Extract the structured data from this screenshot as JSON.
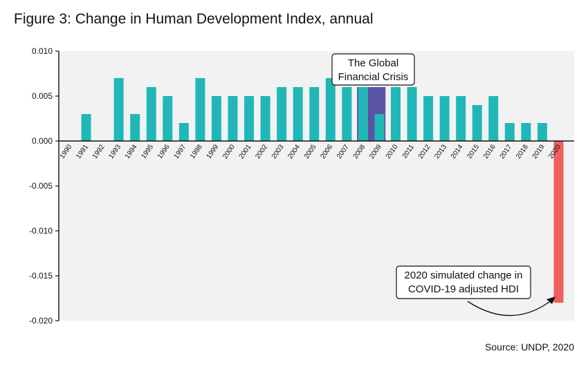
{
  "title": "Figure 3: Change in Human Development Index, annual",
  "source": "Source: UNDP, 2020",
  "colors": {
    "bar": "#21b7b7",
    "crisis_highlight": "#5a53a6",
    "covid_bar": "#f0605d",
    "plot_bg": "#f2f2f2"
  },
  "chart_data": {
    "type": "bar",
    "title": "Figure 3: Change in Human Development Index, annual",
    "xlabel": "",
    "ylabel": "",
    "ylim": [
      -0.02,
      0.01
    ],
    "yticks": [
      "0.010",
      "0.005",
      "0.000",
      "-0.005",
      "-0.010",
      "-0.015",
      "-0.020"
    ],
    "grid": false,
    "categories": [
      "1990",
      "1991",
      "1992",
      "1993",
      "1994",
      "1995",
      "1996",
      "1997",
      "1998",
      "1999",
      "2000",
      "2001",
      "2002",
      "2003",
      "2004",
      "2005",
      "2006",
      "2007",
      "2008",
      "2009",
      "2010",
      "2011",
      "2012",
      "2013",
      "2014",
      "2015",
      "2016",
      "2017",
      "2018",
      "2019",
      "2020"
    ],
    "values": [
      0,
      0.003,
      0,
      0.007,
      0.003,
      0.006,
      0.005,
      0.002,
      0.007,
      0.005,
      0.005,
      0.005,
      0.005,
      0.006,
      0.006,
      0.006,
      0.007,
      0.006,
      0.006,
      0.003,
      0.006,
      0.006,
      0.005,
      0.005,
      0.005,
      0.004,
      0.005,
      0.002,
      0.002,
      0.002,
      -0.018
    ],
    "highlight_range": [
      "2008",
      "2009"
    ],
    "annotations": [
      {
        "lines": [
          "The Global",
          "Financial Crisis"
        ],
        "target": "2008-2009"
      },
      {
        "lines": [
          "2020 simulated change in",
          "COVID-19 adjusted HDI"
        ],
        "target": "2020"
      }
    ]
  }
}
